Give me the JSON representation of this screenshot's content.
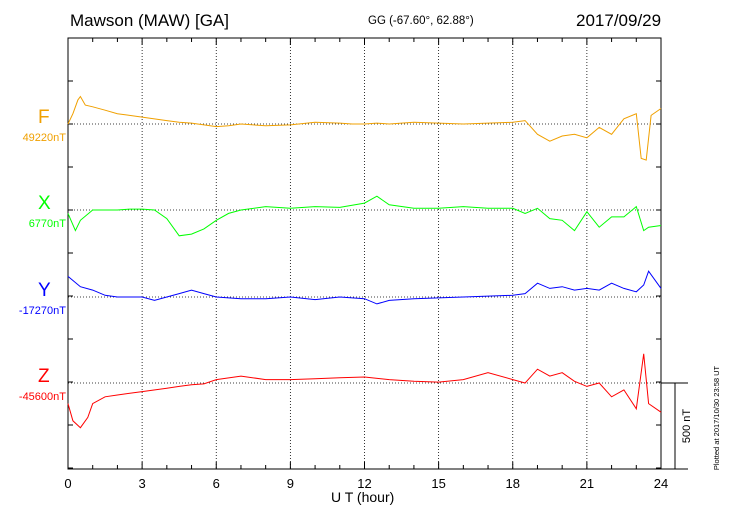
{
  "header": {
    "station": "Mawson (MAW)  [GA]",
    "coords": "GG (-67.60°,  62.88°)",
    "date": "2017/09/29"
  },
  "footer": {
    "xlabel": "U T (hour)",
    "plotted": "Plotted at 2017/10/30 23:58 UT",
    "scale": "500 nT"
  },
  "chart_data": {
    "type": "line",
    "xlabel": "U T (hour)",
    "xlim": [
      0,
      24
    ],
    "xticks": [
      0,
      3,
      6,
      9,
      12,
      15,
      18,
      21,
      24
    ],
    "grid": true,
    "scale_bar_nT": 500,
    "series": [
      {
        "name": "F",
        "baseline_label": "49220nT",
        "color": "#f0a000",
        "baseline_nT": 49220,
        "x": [
          0,
          0.2,
          0.4,
          0.5,
          0.7,
          1,
          1.5,
          2,
          3,
          4,
          4.5,
          5,
          5.5,
          6,
          6.5,
          7,
          7.5,
          8,
          9,
          10,
          11,
          11.5,
          12,
          12.5,
          13,
          14,
          15,
          16,
          17,
          18,
          18.5,
          19,
          19.5,
          20,
          20.5,
          21,
          21.5,
          22,
          22.5,
          23,
          23.2,
          23.4,
          23.6,
          24
        ],
        "y": [
          0,
          60,
          140,
          160,
          110,
          100,
          80,
          60,
          40,
          20,
          10,
          5,
          -5,
          -15,
          -10,
          0,
          -5,
          -10,
          -5,
          10,
          5,
          0,
          0,
          5,
          0,
          10,
          5,
          0,
          5,
          10,
          20,
          -60,
          -100,
          -70,
          -60,
          -80,
          -20,
          -60,
          30,
          60,
          -200,
          -210,
          50,
          90
        ]
      },
      {
        "name": "X",
        "baseline_label": "6770nT",
        "color": "#00ff00",
        "baseline_nT": 6770,
        "x": [
          0,
          0.3,
          0.5,
          1,
          1.5,
          2,
          2.5,
          3,
          3.5,
          4,
          4.5,
          5,
          5.5,
          6,
          6.5,
          7,
          8,
          9,
          10,
          11,
          12,
          12.5,
          13,
          14,
          15,
          16,
          17,
          18,
          18.5,
          19,
          19.5,
          20,
          20.5,
          21,
          21.5,
          22,
          22.5,
          23,
          23.3,
          23.5,
          24
        ],
        "y": [
          -20,
          -120,
          -60,
          0,
          0,
          0,
          5,
          5,
          0,
          -50,
          -150,
          -140,
          -110,
          -60,
          -20,
          0,
          20,
          10,
          20,
          15,
          40,
          80,
          30,
          10,
          10,
          20,
          10,
          10,
          -20,
          10,
          -50,
          -60,
          -120,
          -10,
          -100,
          -40,
          -40,
          20,
          -120,
          -100,
          -90
        ]
      },
      {
        "name": "Y",
        "baseline_label": "-17270nT",
        "color": "#0000ff",
        "baseline_nT": -17270,
        "x": [
          0,
          0.5,
          1,
          1.5,
          2,
          3,
          3.5,
          4,
          4.5,
          5,
          5.5,
          6,
          7,
          8,
          9,
          10,
          11,
          12,
          12.5,
          13,
          14,
          15,
          16,
          17,
          18,
          18.5,
          19,
          19.5,
          20,
          20.5,
          21,
          21.5,
          22,
          22.5,
          23,
          23.3,
          23.5,
          24
        ],
        "y": [
          120,
          60,
          40,
          10,
          0,
          0,
          -20,
          0,
          20,
          40,
          20,
          0,
          -10,
          -10,
          0,
          -15,
          0,
          -10,
          -40,
          -20,
          -10,
          -5,
          0,
          5,
          10,
          20,
          80,
          50,
          60,
          40,
          50,
          40,
          80,
          50,
          30,
          70,
          150,
          50
        ]
      },
      {
        "name": "Z",
        "baseline_label": "-45600nT",
        "color": "#ff0000",
        "baseline_nT": -45600,
        "x": [
          0,
          0.2,
          0.5,
          0.8,
          1,
          1.5,
          2,
          3,
          4,
          4.5,
          5,
          5.5,
          6,
          7,
          8,
          9,
          10,
          11,
          12,
          13,
          14,
          15,
          16,
          17,
          18,
          18.5,
          19,
          19.5,
          20,
          20.5,
          21,
          21.5,
          22,
          22.5,
          23,
          23.3,
          23.5,
          24
        ],
        "y": [
          -120,
          -220,
          -260,
          -200,
          -120,
          -80,
          -70,
          -50,
          -30,
          -20,
          -10,
          -5,
          20,
          40,
          20,
          20,
          25,
          30,
          35,
          20,
          10,
          5,
          20,
          60,
          20,
          0,
          80,
          40,
          60,
          10,
          -20,
          0,
          -80,
          -40,
          -150,
          170,
          -120,
          -170
        ]
      }
    ]
  }
}
